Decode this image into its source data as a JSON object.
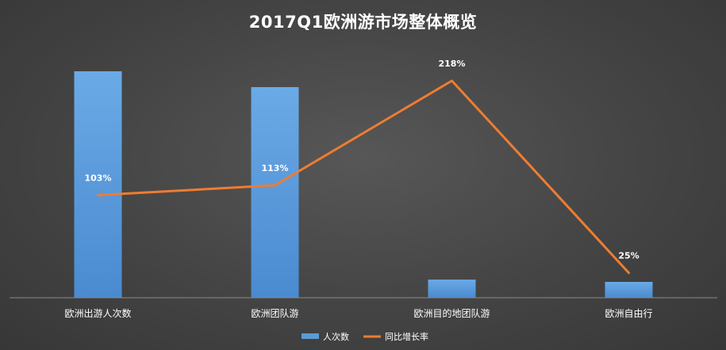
{
  "chart_data": {
    "type": "bar",
    "title": "2017Q1欧洲游市场整体概览",
    "categories": [
      "欧洲出游人次数",
      "欧洲团队游",
      "欧洲目的地团队游",
      "欧洲自由行"
    ],
    "series": [
      {
        "name": "人次数",
        "kind": "bar",
        "color": "#5b9bd5",
        "values": [
          100,
          93,
          8,
          7
        ]
      },
      {
        "name": "同比增长率",
        "kind": "line",
        "color": "#ed7d31",
        "values": [
          103,
          113,
          218,
          25
        ],
        "labels": [
          "103%",
          "113%",
          "218%",
          "25%"
        ]
      }
    ],
    "bar_ylim": [
      0,
      105
    ],
    "line_ylim": [
      0,
      240
    ],
    "legend_position": "bottom",
    "grid": false
  }
}
